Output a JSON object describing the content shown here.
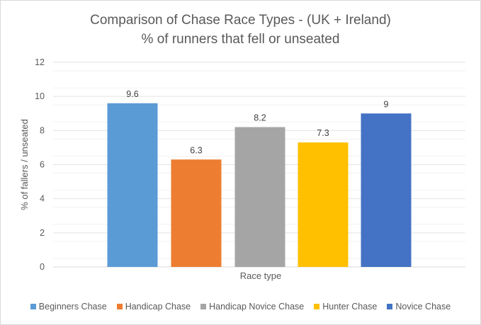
{
  "chart_data": {
    "type": "bar",
    "title": "Comparison of Chase Race Types - (UK + Ireland)",
    "subtitle": "% of runners that fell or unseated",
    "xlabel": "Race type",
    "ylabel": "% of fallers / unseated",
    "ylim": [
      0,
      12
    ],
    "yticks": [
      "0",
      "2",
      "4",
      "6",
      "8",
      "10",
      "12"
    ],
    "grid": true,
    "legend_position": "bottom",
    "series": [
      {
        "name": "Beginners Chase",
        "value": 9.6,
        "label": "9.6",
        "color": "#5b9bd5"
      },
      {
        "name": "Handicap Chase",
        "value": 6.3,
        "label": "6.3",
        "color": "#ed7d31"
      },
      {
        "name": "Handicap Novice Chase",
        "value": 8.2,
        "label": "8.2",
        "color": "#a5a5a5"
      },
      {
        "name": "Hunter Chase",
        "value": 7.3,
        "label": "7.3",
        "color": "#ffc000"
      },
      {
        "name": "Novice Chase",
        "value": 9,
        "label": "9",
        "color": "#4472c4"
      }
    ]
  }
}
